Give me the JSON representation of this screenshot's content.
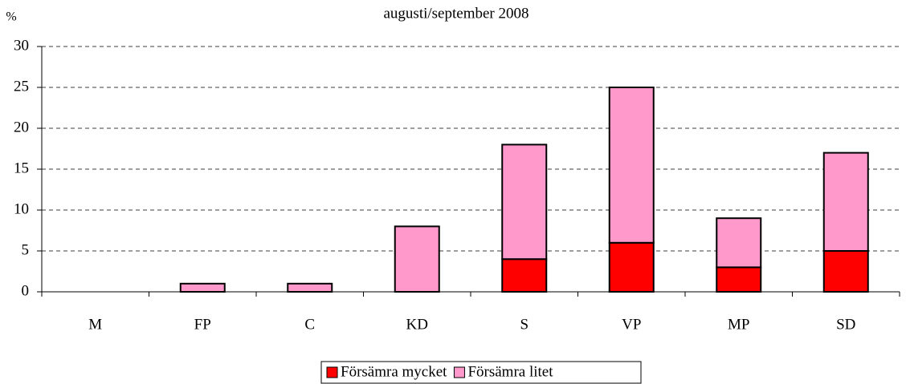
{
  "chart_data": {
    "type": "bar",
    "stacked": true,
    "title": "augusti/september 2008",
    "y_label": "%",
    "categories": [
      "M",
      "FP",
      "C",
      "KD",
      "S",
      "VP",
      "MP",
      "SD"
    ],
    "series": [
      {
        "name": "Försämra mycket",
        "color": "#ff0000",
        "values": [
          0,
          0,
          0,
          0,
          4,
          6,
          3,
          5
        ]
      },
      {
        "name": "Försämra litet",
        "color": "#ff99cc",
        "values": [
          0,
          1,
          1,
          8,
          14,
          19,
          6,
          12
        ]
      }
    ],
    "ylim": [
      0,
      30
    ],
    "yticks": [
      0,
      5,
      10,
      15,
      20,
      25,
      30
    ],
    "grid": true,
    "legend": "bottom"
  }
}
